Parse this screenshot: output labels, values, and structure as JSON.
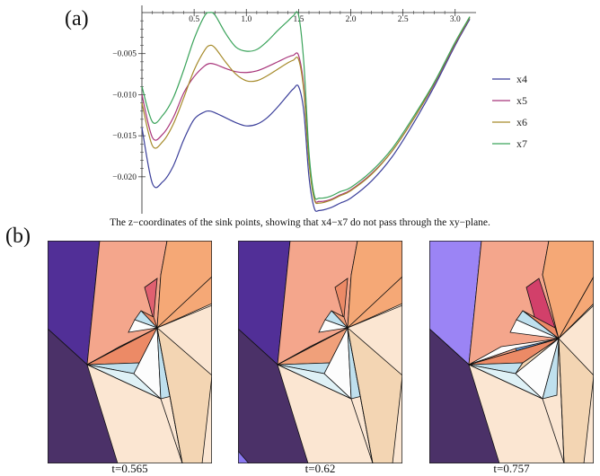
{
  "panel_a_label": "(a)",
  "panel_b_label": "(b)",
  "caption": "The z−coordinates of the sink points, showing that x4−x7 do not pass through the xy−plane.",
  "chart_data": {
    "type": "line",
    "title": "",
    "xlabel": "",
    "ylabel": "",
    "xlim": [
      0,
      3.2
    ],
    "ylim": [
      -0.0245,
      0.0
    ],
    "x_ticks": [
      0.5,
      1.0,
      1.5,
      2.0,
      2.5,
      3.0
    ],
    "x_tick_labels": [
      "0.5",
      "1.0",
      "1.5",
      "2.0",
      "2.5",
      "3.0"
    ],
    "y_ticks": [
      -0.005,
      -0.01,
      -0.015,
      -0.02
    ],
    "y_tick_labels": [
      "−0.005",
      "−0.010",
      "−0.015",
      "−0.020"
    ],
    "legend_position": "right",
    "x": [
      0.0,
      0.1,
      0.2,
      0.3,
      0.4,
      0.5,
      0.6,
      0.65,
      0.7,
      0.8,
      0.9,
      1.0,
      1.1,
      1.2,
      1.3,
      1.4,
      1.45,
      1.5,
      1.55,
      1.6,
      1.65,
      1.7,
      1.8,
      1.9,
      2.0,
      2.2,
      2.4,
      2.6,
      2.8,
      3.0,
      3.14
    ],
    "series": [
      {
        "name": "x4",
        "color": "#3b3f9a",
        "values": [
          -0.014,
          -0.0208,
          -0.0206,
          -0.0187,
          -0.0155,
          -0.013,
          -0.0121,
          -0.012,
          -0.0122,
          -0.0128,
          -0.0134,
          -0.0138,
          -0.0136,
          -0.0128,
          -0.0115,
          -0.01,
          -0.0093,
          -0.009,
          -0.012,
          -0.02,
          -0.0238,
          -0.0241,
          -0.0238,
          -0.0232,
          -0.0226,
          -0.0205,
          -0.0175,
          -0.0135,
          -0.009,
          -0.004,
          -0.0008
        ]
      },
      {
        "name": "x5",
        "color": "#a8347a",
        "values": [
          -0.01,
          -0.0152,
          -0.0148,
          -0.0128,
          -0.0098,
          -0.0078,
          -0.0065,
          -0.0062,
          -0.0063,
          -0.0068,
          -0.0072,
          -0.0073,
          -0.0071,
          -0.0066,
          -0.006,
          -0.0054,
          -0.0052,
          -0.0052,
          -0.009,
          -0.018,
          -0.0226,
          -0.023,
          -0.0228,
          -0.0222,
          -0.0216,
          -0.0196,
          -0.0168,
          -0.013,
          -0.0087,
          -0.0038,
          -0.0006
        ]
      },
      {
        "name": "x6",
        "color": "#a68a2a",
        "values": [
          -0.011,
          -0.0162,
          -0.0157,
          -0.0136,
          -0.0104,
          -0.007,
          -0.0046,
          -0.004,
          -0.0043,
          -0.006,
          -0.0075,
          -0.0083,
          -0.0083,
          -0.0077,
          -0.0069,
          -0.0061,
          -0.0058,
          -0.0057,
          -0.0095,
          -0.0182,
          -0.0227,
          -0.0232,
          -0.0229,
          -0.0223,
          -0.0217,
          -0.0197,
          -0.0168,
          -0.013,
          -0.0086,
          -0.0037,
          -0.0006
        ]
      },
      {
        "name": "x7",
        "color": "#3aa35a",
        "values": [
          -0.009,
          -0.0133,
          -0.0125,
          -0.0104,
          -0.007,
          -0.0032,
          -0.0004,
          0.0,
          -0.0003,
          -0.0025,
          -0.0042,
          -0.0047,
          -0.0045,
          -0.0035,
          -0.0022,
          -0.001,
          -0.0004,
          -0.0003,
          -0.006,
          -0.017,
          -0.0222,
          -0.0226,
          -0.0224,
          -0.0218,
          -0.0213,
          -0.0193,
          -0.0165,
          -0.0127,
          -0.0085,
          -0.0036,
          -0.0005
        ]
      }
    ]
  },
  "snapshots": [
    {
      "label": "t=0.565",
      "colors": {
        "dark_purple": "#4b3168",
        "purple": "#512f97",
        "salmon": "#f4a68c",
        "orange": "#f5a876",
        "red": "#e06070",
        "cream": "#fbe6d2",
        "tan": "#f3d5b3",
        "light_blue": "#bfe0ee",
        "pale_blue": "#dff1f6",
        "white": "#fdfdfd",
        "blue": "#7fa8e0",
        "orange_red": "#ec8a66"
      }
    },
    {
      "label": "t=0.62",
      "colors": {
        "dark_purple": "#4b3168",
        "purple": "#512f97",
        "salmon": "#f4a68c",
        "orange": "#f5a876",
        "red": "#ec8a66",
        "cream": "#fbe6d2",
        "tan": "#f3d5b3",
        "light_blue": "#bfe0ee",
        "pale_blue": "#dff1f6",
        "white": "#fdfdfd",
        "blue": "#a8c8ee",
        "orange_red": "#f0a07a"
      }
    },
    {
      "label": "t=0.757",
      "colors": {
        "dark_purple": "#4b3168",
        "purple": "#9b84f5",
        "salmon": "#f4a68c",
        "orange": "#f5a876",
        "red": "#d2406a",
        "cream": "#fbe6d2",
        "tan": "#f3d5b3",
        "light_blue": "#bfe0ee",
        "pale_blue": "#dff1f6",
        "white": "#fdfdfd",
        "blue": "#6aa0e0",
        "orange_red": "#ec8a66"
      }
    }
  ]
}
